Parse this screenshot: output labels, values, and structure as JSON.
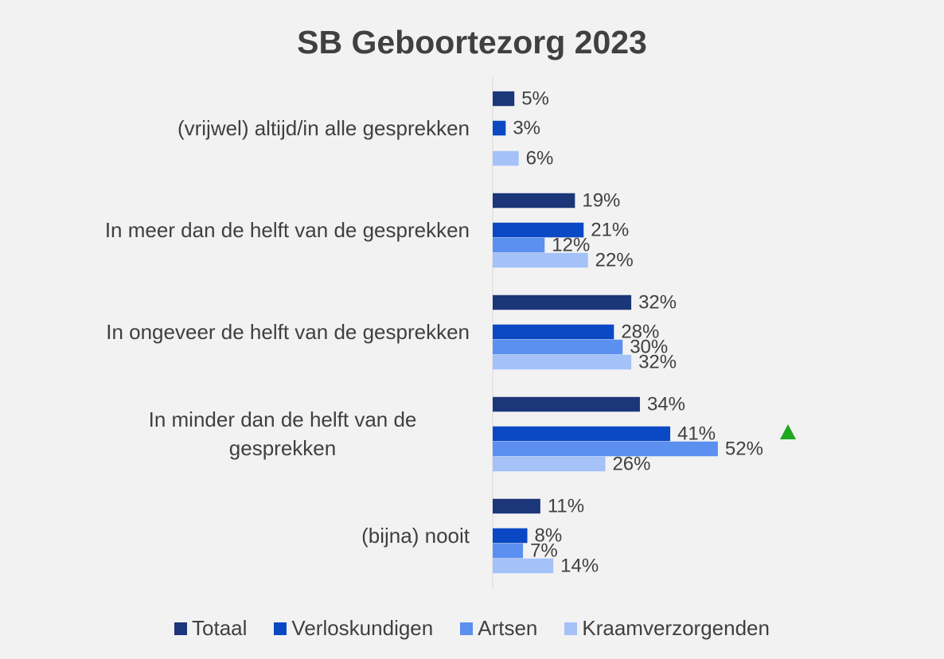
{
  "chart_data": {
    "type": "bar",
    "orientation": "horizontal",
    "title": "SB Geboortezorg 2023",
    "categories": [
      "(vrijwel) altijd/in alle gesprekken",
      "In meer dan de helft van de gesprekken",
      "In ongeveer de helft van de gesprekken",
      "In minder dan de helft van de gesprekken",
      "(bijna) nooit"
    ],
    "series": [
      {
        "name": "Totaal",
        "color": "#1b3679",
        "values": [
          5,
          19,
          32,
          34,
          11
        ],
        "value_labels": [
          "5%",
          "19%",
          "32%",
          "34%",
          "11%"
        ]
      },
      {
        "name": "Verloskundigen",
        "color": "#0b48c4",
        "values": [
          3,
          21,
          28,
          41,
          8
        ],
        "value_labels": [
          "3%",
          "21%",
          "28%",
          "41%",
          "8%"
        ]
      },
      {
        "name": "Artsen",
        "color": "#5b8ff0",
        "values": [
          null,
          12,
          30,
          52,
          7
        ],
        "value_labels": [
          null,
          "12%",
          "30%",
          "52%",
          "7%"
        ]
      },
      {
        "name": "Kraamverzorgenden",
        "color": "#a4c1f8",
        "values": [
          6,
          22,
          32,
          26,
          14
        ],
        "value_labels": [
          "6%",
          "22%",
          "32%",
          "26%",
          "14%"
        ]
      }
    ],
    "legend": "bottom"
  }
}
